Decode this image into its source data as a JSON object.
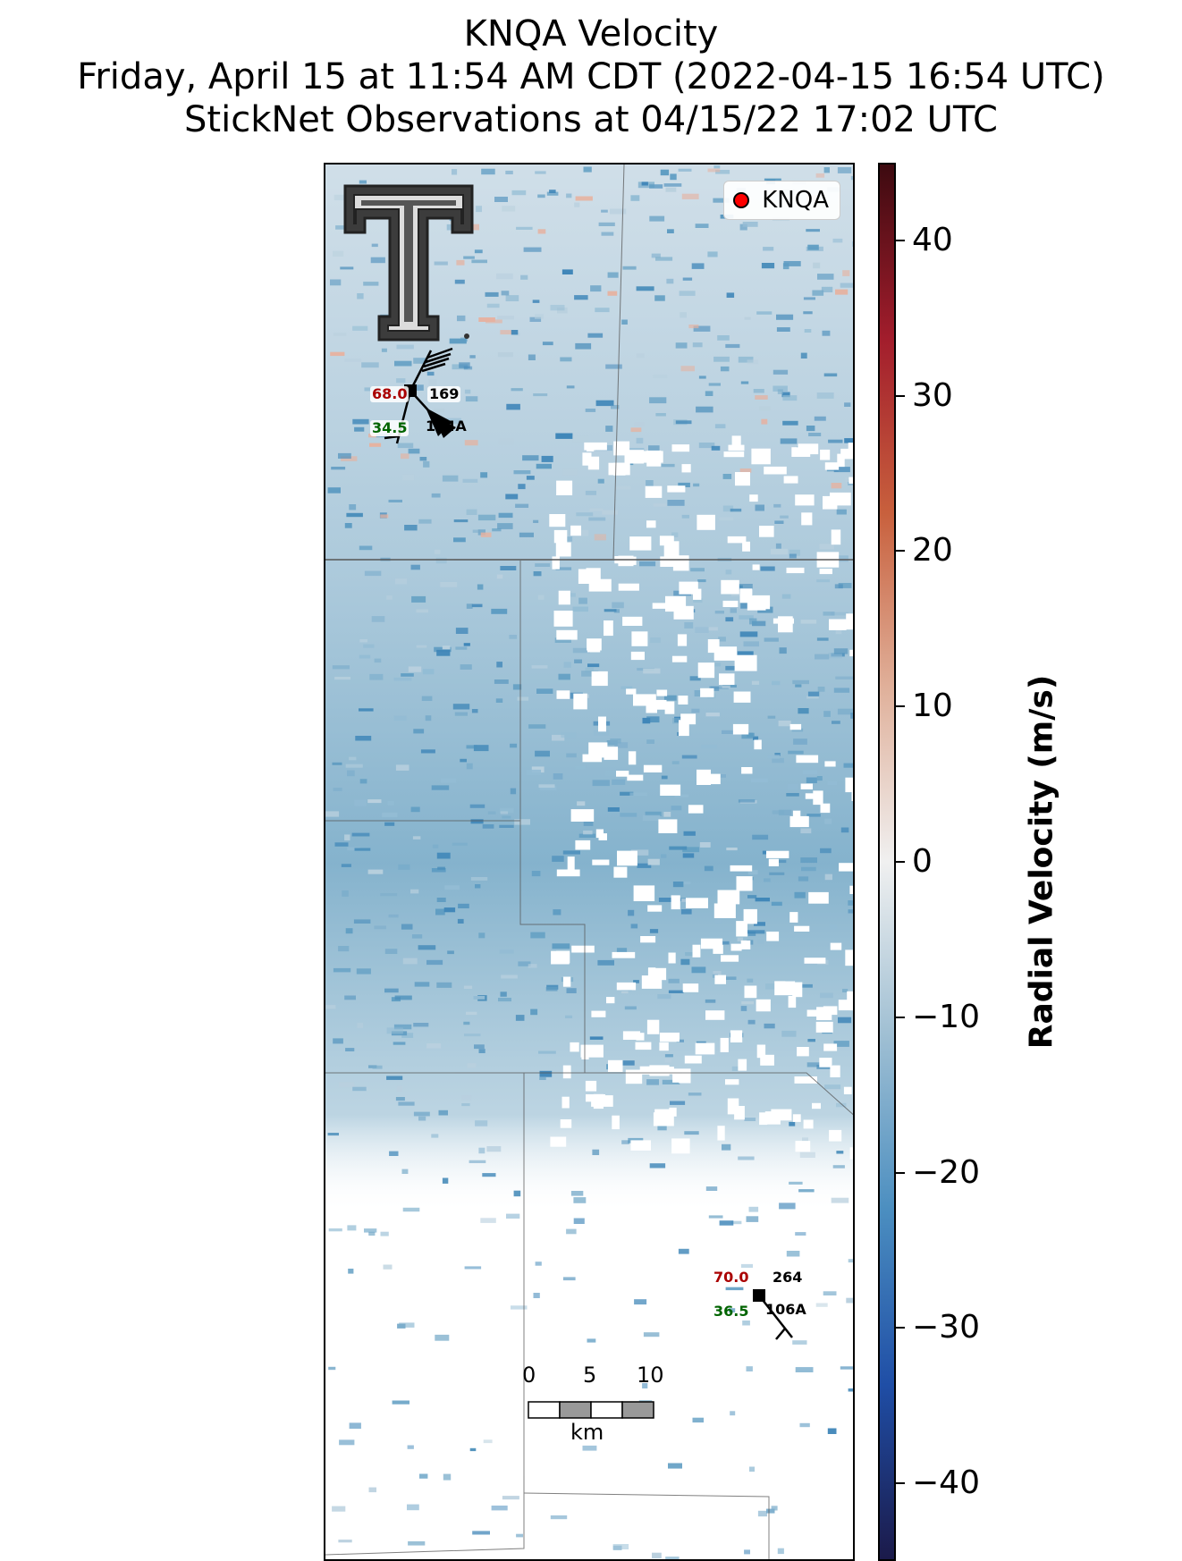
{
  "title": {
    "line1": "KNQA Velocity",
    "line2": "Friday, April 15 at 11:54 AM CDT (2022-04-15 16:54 UTC)",
    "line3": "StickNet Observations at 04/15/22 17:02 UTC"
  },
  "legend": {
    "label": "KNQA",
    "marker_color": "#ff0000"
  },
  "stations": [
    {
      "id": "104A",
      "temperature": "68.0",
      "dewpoint": "34.5",
      "pressure": "169"
    },
    {
      "id": "106A",
      "temperature": "70.0",
      "dewpoint": "36.5",
      "pressure": "264"
    }
  ],
  "scalebar": {
    "ticks": [
      "0",
      "5",
      "10"
    ],
    "unit": "km"
  },
  "colorbar": {
    "label": "Radial Velocity (m/s)",
    "min": -45,
    "max": 45,
    "ticks": [
      "40",
      "30",
      "20",
      "10",
      "0",
      "−10",
      "−20",
      "−30",
      "−40"
    ],
    "tick_values": [
      40,
      30,
      20,
      10,
      0,
      -10,
      -20,
      -30,
      -40
    ],
    "colors": [
      "#1b1a4a",
      "#1f4ea6",
      "#4b8ec0",
      "#9fbfd3",
      "#f0f0f0",
      "#e0b09a",
      "#c8603d",
      "#a21d2c",
      "#3d0a10"
    ]
  },
  "logo": {
    "name": "texas-tech-double-t-logo"
  }
}
